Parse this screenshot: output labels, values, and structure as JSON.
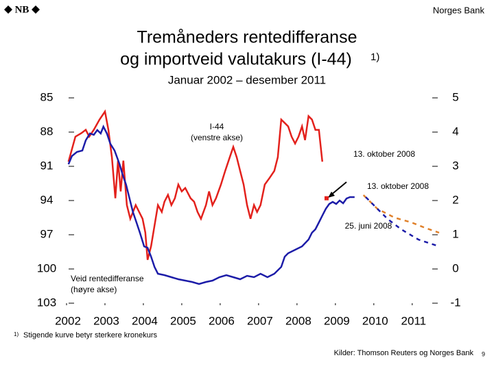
{
  "header": {
    "logo": "NB",
    "org": "Norges Bank"
  },
  "chart_data": {
    "type": "line",
    "title": [
      "Tremåneders rentedifferanse",
      "og importveid valutakurs (I-44)"
    ],
    "title_note": "1)",
    "subtitle": "Januar 2002 – desember 2011",
    "xlim": [
      2002,
      2011.7
    ],
    "xticks": [
      2002,
      2003,
      2004,
      2005,
      2006,
      2007,
      2008,
      2009,
      2010,
      2011
    ],
    "ylim": [
      103,
      85
    ],
    "yticks": [
      85,
      88,
      91,
      94,
      97,
      100,
      103
    ],
    "y2lim": [
      -1,
      5
    ],
    "y2ticks": [
      5,
      4,
      3,
      2,
      1,
      0,
      -1
    ],
    "series": [
      {
        "name": "I-44",
        "axis_label": "(venstre akse)",
        "color": "#e3211c",
        "axis": "y",
        "x": [
          2002.05,
          2002.23,
          2002.38,
          2002.5,
          2002.59,
          2002.71,
          2002.86,
          2003.0,
          2003.09,
          2003.18,
          2003.27,
          2003.34,
          2003.41,
          2003.48,
          2003.57,
          2003.66,
          2003.8,
          2003.89,
          2003.98,
          2004.05,
          2004.11,
          2004.2,
          2004.29,
          2004.38,
          2004.48,
          2004.55,
          2004.64,
          2004.73,
          2004.82,
          2004.91,
          2005.0,
          2005.09,
          2005.23,
          2005.32,
          2005.41,
          2005.5,
          2005.63,
          2005.71,
          2005.8,
          2005.89,
          2006.02,
          2006.13,
          2006.25,
          2006.34,
          2006.43,
          2006.52,
          2006.61,
          2006.7,
          2006.79,
          2006.88,
          2006.96,
          2007.05,
          2007.16,
          2007.29,
          2007.41,
          2007.5,
          2007.59,
          2007.68,
          2007.77,
          2007.86,
          2007.95,
          2008.04,
          2008.13,
          2008.21,
          2008.3,
          2008.39,
          2008.48,
          2008.57,
          2008.66
        ],
        "values": [
          90.6,
          88.4,
          88.1,
          87.8,
          88.4,
          87.8,
          86.9,
          86.2,
          87.8,
          90.2,
          93.8,
          90.5,
          93.2,
          90.5,
          94.4,
          95.6,
          94.4,
          95.0,
          95.6,
          96.8,
          99.2,
          98.0,
          96.2,
          94.4,
          95.0,
          94.1,
          93.5,
          94.4,
          93.8,
          92.6,
          93.2,
          92.9,
          93.8,
          94.1,
          95.0,
          95.6,
          94.4,
          93.2,
          94.4,
          93.8,
          92.6,
          91.4,
          90.2,
          89.3,
          90.2,
          91.4,
          92.6,
          94.4,
          95.6,
          94.4,
          95.0,
          94.4,
          92.6,
          92.0,
          91.4,
          90.2,
          86.9,
          87.2,
          87.5,
          88.4,
          89.0,
          88.4,
          87.5,
          88.7,
          86.6,
          86.9,
          87.8,
          87.8,
          90.6
        ]
      },
      {
        "name": "Veid rentedifferanse",
        "axis_label": "(høyre akse)",
        "color": "#1c1ca8",
        "axis": "y2",
        "x": [
          2002.05,
          2002.14,
          2002.27,
          2002.41,
          2002.5,
          2002.61,
          2002.71,
          2002.8,
          2002.89,
          2002.96,
          2003.05,
          2003.14,
          2003.25,
          2003.38,
          2003.46,
          2003.55,
          2003.64,
          2003.73,
          2003.82,
          2003.91,
          2004.02,
          2004.11,
          2004.2,
          2004.29,
          2004.38,
          2004.55,
          2004.73,
          2004.91,
          2005.09,
          2005.27,
          2005.45,
          2005.63,
          2005.8,
          2005.98,
          2006.16,
          2006.34,
          2006.52,
          2006.7,
          2006.88,
          2007.05,
          2007.23,
          2007.41,
          2007.59,
          2007.68,
          2007.77,
          2007.95,
          2008.13,
          2008.3,
          2008.39,
          2008.48,
          2008.57,
          2008.66,
          2008.75,
          2008.84,
          2008.93,
          2009.02,
          2009.11,
          2009.2,
          2009.29,
          2009.38,
          2009.5
        ],
        "values": [
          3.06,
          3.3,
          3.42,
          3.46,
          3.76,
          3.96,
          3.92,
          4.06,
          3.96,
          4.16,
          3.96,
          3.66,
          3.46,
          3.06,
          2.76,
          2.46,
          2.06,
          1.66,
          1.36,
          1.06,
          0.66,
          0.62,
          0.36,
          0.06,
          -0.14,
          -0.18,
          -0.24,
          -0.3,
          -0.34,
          -0.38,
          -0.44,
          -0.38,
          -0.34,
          -0.24,
          -0.18,
          -0.24,
          -0.3,
          -0.2,
          -0.24,
          -0.14,
          -0.24,
          -0.14,
          0.06,
          0.36,
          0.46,
          0.56,
          0.66,
          0.86,
          1.06,
          1.16,
          1.36,
          1.56,
          1.76,
          1.9,
          1.96,
          1.9,
          2.0,
          1.92,
          2.06,
          2.1,
          2.1
        ]
      },
      {
        "name": "13. oktober 2008",
        "color": "#e0802a",
        "axis": "y2",
        "dashed": true,
        "x": [
          2009.73,
          2010.09,
          2010.54,
          2010.98,
          2011.34,
          2011.7
        ],
        "values": [
          2.16,
          1.76,
          1.5,
          1.36,
          1.2,
          1.06
        ]
      },
      {
        "name": "25. juni 2008",
        "color": "#1c1ca8",
        "axis": "y2",
        "dashed": true,
        "x": [
          2009.79,
          2010.09,
          2010.36,
          2010.71,
          2011.16,
          2011.7
        ],
        "values": [
          2.1,
          1.76,
          1.46,
          1.16,
          0.86,
          0.66
        ]
      }
    ],
    "point": {
      "label": "13. oktober 2008",
      "x": 2008.77,
      "y": 93.8,
      "color": "#e3211c"
    }
  },
  "footnote": {
    "marker": "1)",
    "text": "Stigende kurve betyr sterkere kronekurs"
  },
  "source": "Kilder: Thomson Reuters og Norges Bank",
  "page_number": "9"
}
